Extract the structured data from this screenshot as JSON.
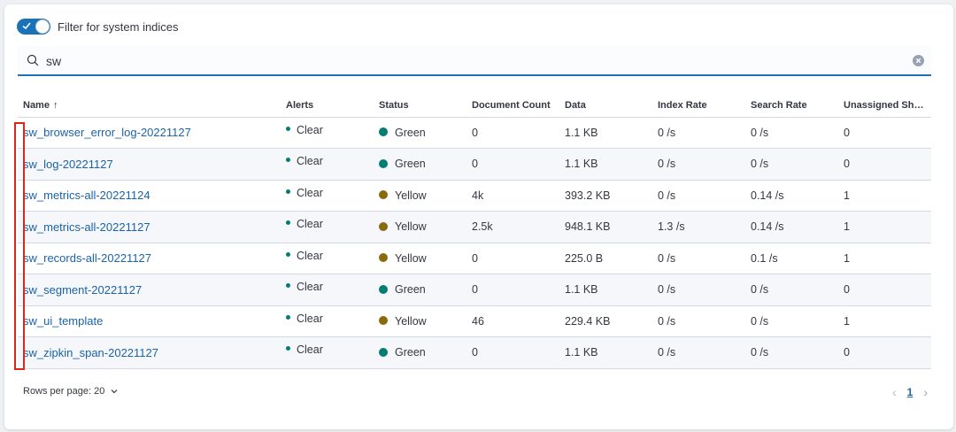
{
  "filter": {
    "label": "Filter for system indices",
    "enabled": true
  },
  "search": {
    "value": "sw",
    "placeholder": ""
  },
  "colors": {
    "accent": "#1a73b8",
    "green": "#017d73",
    "yellow": "#8a6a0a",
    "clear": "#017d73",
    "highlight": "#e0241a"
  },
  "columns": [
    "Name",
    "Alerts",
    "Status",
    "Document Count",
    "Data",
    "Index Rate",
    "Search Rate",
    "Unassigned Shar…"
  ],
  "rows": [
    {
      "name": "sw_browser_error_log-20221127",
      "alerts": "Clear",
      "status": "Green",
      "status_color": "#017d73",
      "doc_count": "0",
      "data": "1.1 KB",
      "index_rate": "0 /s",
      "search_rate": "0 /s",
      "unassigned": "0"
    },
    {
      "name": "sw_log-20221127",
      "alerts": "Clear",
      "status": "Green",
      "status_color": "#017d73",
      "doc_count": "0",
      "data": "1.1 KB",
      "index_rate": "0 /s",
      "search_rate": "0 /s",
      "unassigned": "0"
    },
    {
      "name": "sw_metrics-all-20221124",
      "alerts": "Clear",
      "status": "Yellow",
      "status_color": "#8a6a0a",
      "doc_count": "4k",
      "data": "393.2 KB",
      "index_rate": "0 /s",
      "search_rate": "0.14 /s",
      "unassigned": "1"
    },
    {
      "name": "sw_metrics-all-20221127",
      "alerts": "Clear",
      "status": "Yellow",
      "status_color": "#8a6a0a",
      "doc_count": "2.5k",
      "data": "948.1 KB",
      "index_rate": "1.3 /s",
      "search_rate": "0.14 /s",
      "unassigned": "1"
    },
    {
      "name": "sw_records-all-20221127",
      "alerts": "Clear",
      "status": "Yellow",
      "status_color": "#8a6a0a",
      "doc_count": "0",
      "data": "225.0 B",
      "index_rate": "0 /s",
      "search_rate": "0.1 /s",
      "unassigned": "1"
    },
    {
      "name": "sw_segment-20221127",
      "alerts": "Clear",
      "status": "Green",
      "status_color": "#017d73",
      "doc_count": "0",
      "data": "1.1 KB",
      "index_rate": "0 /s",
      "search_rate": "0 /s",
      "unassigned": "0"
    },
    {
      "name": "sw_ui_template",
      "alerts": "Clear",
      "status": "Yellow",
      "status_color": "#8a6a0a",
      "doc_count": "46",
      "data": "229.4 KB",
      "index_rate": "0 /s",
      "search_rate": "0 /s",
      "unassigned": "1"
    },
    {
      "name": "sw_zipkin_span-20221127",
      "alerts": "Clear",
      "status": "Green",
      "status_color": "#017d73",
      "doc_count": "0",
      "data": "1.1 KB",
      "index_rate": "0 /s",
      "search_rate": "0 /s",
      "unassigned": "0"
    }
  ],
  "footer": {
    "rows_per_page": "Rows per page: 20",
    "current_page": "1"
  }
}
